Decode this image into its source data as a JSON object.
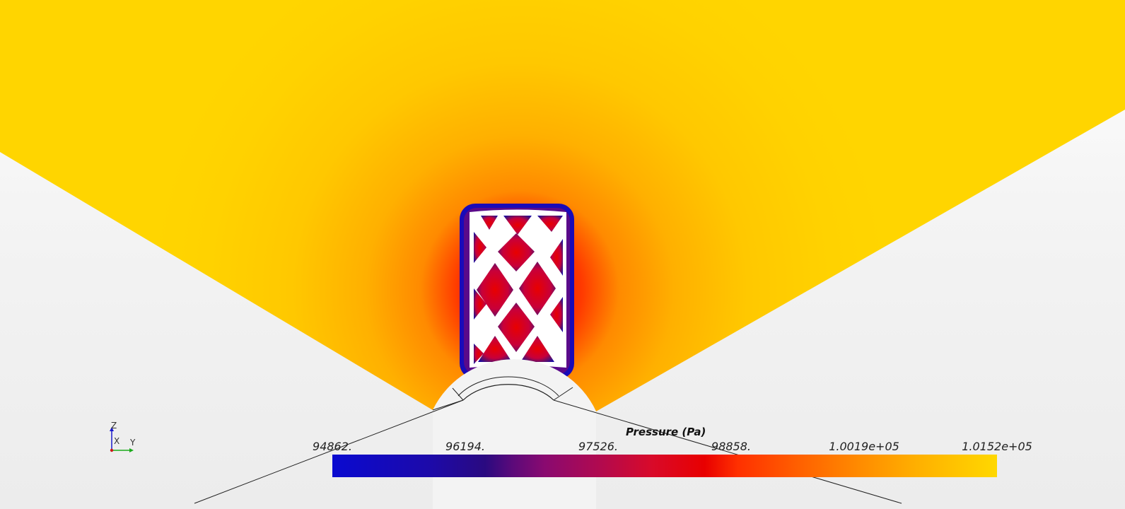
{
  "colorbar": {
    "title": "Pressure (Pa)",
    "ticks": [
      "94862.",
      "96194.",
      "97526.",
      "98858.",
      "1.0019e+05",
      "1.0152e+05"
    ],
    "range": [
      94862,
      101520
    ],
    "colors": {
      "low": "#0a0ad0",
      "mid": "#e80000",
      "high": "#ffd800"
    }
  },
  "axes": {
    "z": "Z",
    "x": "X",
    "y": "Y"
  },
  "icons": {
    "orientation": "xyz-axes-triad-icon"
  }
}
